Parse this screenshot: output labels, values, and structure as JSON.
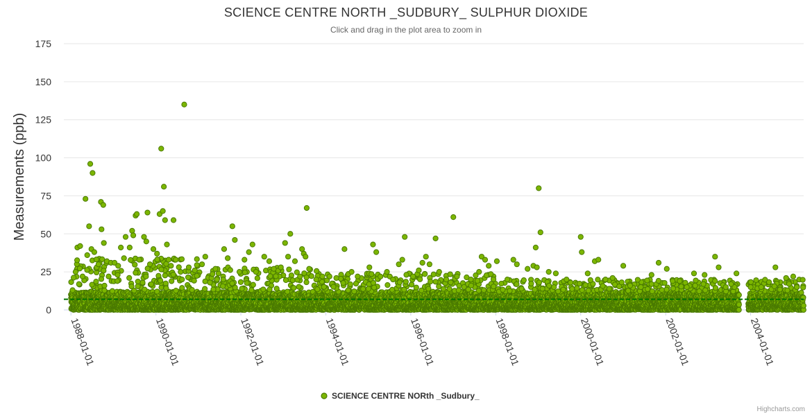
{
  "header": {
    "title": "SCIENCE CENTRE NORTH _SUDBURY_ SULPHUR DIOXIDE",
    "subtitle": "Click and drag in the plot area to zoom in"
  },
  "credits": "Highcharts.com",
  "colors": {
    "marker_fill": "#7cb600",
    "marker_stroke": "#4a7a00",
    "mean_line": "#007000",
    "grid": "#e6e6e6",
    "axis": "#ccd6eb"
  },
  "chart_data": {
    "type": "scatter",
    "title": "SCIENCE CENTRE NORTH _SUDBURY_ SULPHUR DIOXIDE",
    "subtitle": "Click and drag in the plot area to zoom in",
    "ylabel": "Measurements (ppb)",
    "xlabel": "",
    "ylim": [
      0,
      175
    ],
    "yticks": [
      0,
      25,
      50,
      75,
      100,
      125,
      150,
      175
    ],
    "xrange": [
      "1987-11-01",
      "2005-04-01"
    ],
    "xticks": [
      "1988-01-01",
      "1990-01-01",
      "1992-01-01",
      "1994-01-01",
      "1996-01-01",
      "1998-01-01",
      "2000-01-01",
      "2002-01-01",
      "2004-01-01"
    ],
    "mean_line": 7,
    "legend": {
      "position": "bottom-center",
      "entries": [
        "SCIENCE CENTRE NORth _Sudbury_"
      ]
    },
    "series": [
      {
        "name": "SCIENCE CENTRE NORth _Sudbury_",
        "baseline_range_ppb": [
          0,
          12
        ],
        "points": [
          [
            "1988-01-15",
            13
          ],
          [
            "1988-02-10",
            25
          ],
          [
            "1988-02-25",
            41
          ],
          [
            "1988-03-20",
            42
          ],
          [
            "1988-04-10",
            22
          ],
          [
            "1988-05-05",
            73
          ],
          [
            "1988-05-20",
            36
          ],
          [
            "1988-06-05",
            55
          ],
          [
            "1988-06-15",
            96
          ],
          [
            "1988-06-25",
            40
          ],
          [
            "1988-07-05",
            90
          ],
          [
            "1988-07-20",
            38
          ],
          [
            "1988-08-10",
            28
          ],
          [
            "1988-08-25",
            30
          ],
          [
            "1988-09-15",
            71
          ],
          [
            "1988-09-20",
            53
          ],
          [
            "1988-10-05",
            69
          ],
          [
            "1988-10-10",
            44
          ],
          [
            "1988-11-05",
            32
          ],
          [
            "1988-11-20",
            22
          ],
          [
            "1988-12-10",
            31
          ],
          [
            "1989-01-10",
            31
          ],
          [
            "1989-02-10",
            29
          ],
          [
            "1989-03-05",
            41
          ],
          [
            "1989-04-01",
            34
          ],
          [
            "1989-04-15",
            48
          ],
          [
            "1989-05-20",
            41
          ],
          [
            "1989-06-10",
            52
          ],
          [
            "1989-06-20",
            49
          ],
          [
            "1989-07-10",
            62
          ],
          [
            "1989-07-20",
            63
          ],
          [
            "1989-08-10",
            33
          ],
          [
            "1989-09-20",
            48
          ],
          [
            "1989-10-10",
            45
          ],
          [
            "1989-10-20",
            64
          ],
          [
            "1989-11-10",
            30
          ],
          [
            "1989-12-10",
            40
          ],
          [
            "1990-01-10",
            37
          ],
          [
            "1990-02-01",
            63
          ],
          [
            "1990-02-15",
            106
          ],
          [
            "1990-03-01",
            65
          ],
          [
            "1990-03-10",
            81
          ],
          [
            "1990-03-20",
            59
          ],
          [
            "1990-04-05",
            43
          ],
          [
            "1990-04-20",
            33
          ],
          [
            "1990-05-10",
            29
          ],
          [
            "1990-06-01",
            59
          ],
          [
            "1990-06-20",
            33
          ],
          [
            "1990-08-01",
            25
          ],
          [
            "1990-09-01",
            135
          ],
          [
            "1990-10-10",
            28
          ],
          [
            "1990-12-01",
            26
          ],
          [
            "1991-02-01",
            30
          ],
          [
            "1991-03-01",
            35
          ],
          [
            "1991-04-10",
            18
          ],
          [
            "1991-06-10",
            20
          ],
          [
            "1991-08-10",
            40
          ],
          [
            "1991-09-10",
            34
          ],
          [
            "1991-10-20",
            55
          ],
          [
            "1991-11-10",
            46
          ],
          [
            "1991-12-20",
            25
          ],
          [
            "1992-02-01",
            33
          ],
          [
            "1992-03-10",
            38
          ],
          [
            "1992-04-10",
            43
          ],
          [
            "1992-05-10",
            25
          ],
          [
            "1992-07-20",
            35
          ],
          [
            "1992-09-01",
            32
          ],
          [
            "1992-10-10",
            27
          ],
          [
            "1992-12-10",
            28
          ],
          [
            "1993-01-15",
            44
          ],
          [
            "1993-02-10",
            35
          ],
          [
            "1993-03-01",
            50
          ],
          [
            "1993-04-10",
            32
          ],
          [
            "1993-06-10",
            40
          ],
          [
            "1993-06-25",
            37
          ],
          [
            "1993-07-10",
            35
          ],
          [
            "1993-07-20",
            67
          ],
          [
            "1993-08-10",
            27
          ],
          [
            "1993-10-10",
            20
          ],
          [
            "1993-12-01",
            22
          ],
          [
            "1994-02-01",
            22
          ],
          [
            "1994-04-01",
            21
          ],
          [
            "1994-06-10",
            40
          ],
          [
            "1994-08-10",
            25
          ],
          [
            "1994-10-01",
            22
          ],
          [
            "1995-01-10",
            28
          ],
          [
            "1995-02-10",
            43
          ],
          [
            "1995-03-10",
            38
          ],
          [
            "1995-06-10",
            25
          ],
          [
            "1995-08-01",
            20
          ],
          [
            "1995-09-20",
            30
          ],
          [
            "1995-10-20",
            33
          ],
          [
            "1995-11-10",
            48
          ],
          [
            "1996-01-20",
            22
          ],
          [
            "1996-03-10",
            26
          ],
          [
            "1996-04-10",
            31
          ],
          [
            "1996-05-10",
            35
          ],
          [
            "1996-06-10",
            30
          ],
          [
            "1996-08-01",
            47
          ],
          [
            "1996-09-01",
            25
          ],
          [
            "1996-11-01",
            20
          ],
          [
            "1997-01-01",
            61
          ],
          [
            "1997-02-01",
            22
          ],
          [
            "1997-06-01",
            20
          ],
          [
            "1997-08-10",
            25
          ],
          [
            "1997-09-01",
            35
          ],
          [
            "1997-10-01",
            33
          ],
          [
            "1997-11-01",
            29
          ],
          [
            "1998-01-10",
            32
          ],
          [
            "1998-04-10",
            20
          ],
          [
            "1998-06-01",
            33
          ],
          [
            "1998-07-01",
            30
          ],
          [
            "1998-10-01",
            27
          ],
          [
            "1998-11-20",
            29
          ],
          [
            "1998-12-10",
            41
          ],
          [
            "1998-12-20",
            28
          ],
          [
            "1999-01-05",
            80
          ],
          [
            "1999-01-20",
            51
          ],
          [
            "1999-04-01",
            25
          ],
          [
            "1999-06-01",
            24
          ],
          [
            "1999-09-01",
            20
          ],
          [
            "2000-01-01",
            48
          ],
          [
            "2000-01-10",
            38
          ],
          [
            "2000-03-01",
            24
          ],
          [
            "2000-05-01",
            32
          ],
          [
            "2000-06-01",
            33
          ],
          [
            "2000-08-01",
            20
          ],
          [
            "2000-10-01",
            21
          ],
          [
            "2001-01-01",
            29
          ],
          [
            "2001-03-01",
            16
          ],
          [
            "2001-06-01",
            15
          ],
          [
            "2001-09-01",
            23
          ],
          [
            "2001-11-01",
            31
          ],
          [
            "2002-01-10",
            27
          ],
          [
            "2002-03-01",
            19
          ],
          [
            "2002-05-01",
            19
          ],
          [
            "2002-07-01",
            15
          ],
          [
            "2002-09-01",
            24
          ],
          [
            "2002-12-01",
            23
          ],
          [
            "2003-03-01",
            35
          ],
          [
            "2003-04-01",
            28
          ],
          [
            "2003-06-01",
            15
          ],
          [
            "2003-09-01",
            24
          ],
          [
            "2004-01-01",
            15
          ],
          [
            "2004-04-01",
            15
          ],
          [
            "2004-08-01",
            28
          ],
          [
            "2004-11-01",
            21
          ],
          [
            "2005-01-01",
            22
          ],
          [
            "2005-02-01",
            15
          ]
        ]
      }
    ]
  }
}
